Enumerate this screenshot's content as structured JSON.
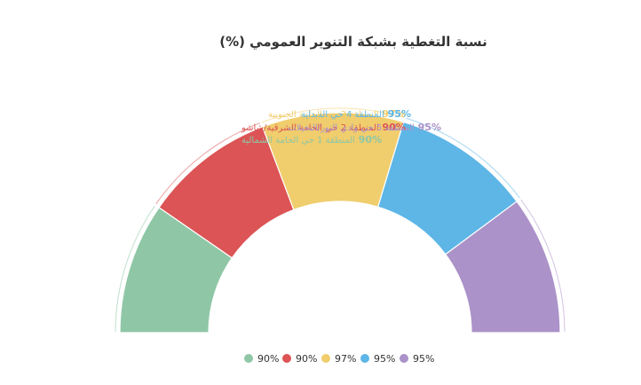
{
  "chart_data": {
    "type": "pie",
    "title": "نسبة التغطية بشبكة التنوير العمومي (%)",
    "categories": [
      "المنطقة 1 حي الحامة الشمالية",
      "المنطقة 2 حي الحامة الشرقية/شاشو",
      "المنطقة 3 حي الحامة الجنوبية",
      "المنطقة 4 حي الدبداية",
      "المنطقة 5 حي وادي النور/النخيلات"
    ],
    "values": [
      90,
      90,
      97,
      95,
      95
    ],
    "value_labels": [
      "90%",
      "90%",
      "97%",
      "95%",
      "95%"
    ],
    "colors": [
      "#8fc7a6",
      "#dc5455",
      "#f0cd6d",
      "#5db6e6",
      "#ab92c8"
    ],
    "legend": {
      "position": "bottom",
      "entries": [
        "90%",
        "90%",
        "97%",
        "95%",
        "95%"
      ]
    }
  }
}
